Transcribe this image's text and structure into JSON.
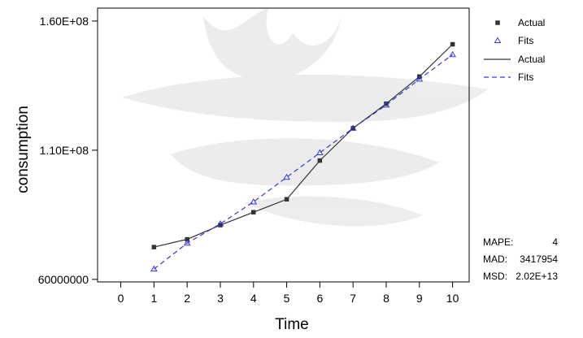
{
  "chart_data": {
    "type": "line",
    "xlabel": "Time",
    "ylabel": "consumption",
    "xlim": [
      -0.7,
      10.5
    ],
    "ylim": [
      59000000,
      165000000
    ],
    "x_ticks": [
      0,
      1,
      2,
      3,
      4,
      5,
      6,
      7,
      8,
      9,
      10
    ],
    "y_ticks": [
      {
        "value": 60000000,
        "label": "60000000"
      },
      {
        "value": 110000000,
        "label": "1.10E+08"
      },
      {
        "value": 160000000,
        "label": "1.60E+08"
      }
    ],
    "x": [
      1,
      2,
      3,
      4,
      5,
      6,
      7,
      8,
      9,
      10
    ],
    "series": [
      {
        "name": "Actual",
        "values": [
          72500000,
          75500000,
          81000000,
          86000000,
          91000000,
          106000000,
          118500000,
          128000000,
          138500000,
          151000000
        ],
        "color": "#333333",
        "marker": "square",
        "line": "solid"
      },
      {
        "name": "Fits",
        "values": [
          64000000,
          74000000,
          81500000,
          90000000,
          99500000,
          109000000,
          118500000,
          127500000,
          137500000,
          147000000
        ],
        "color": "#3a3ad0",
        "marker": "triangle",
        "line": "dashed"
      }
    ],
    "legend": [
      {
        "label": "Actual",
        "kind": "marker",
        "series": 0
      },
      {
        "label": "Fits",
        "kind": "marker",
        "series": 1
      },
      {
        "label": "Actual",
        "kind": "line",
        "series": 0
      },
      {
        "label": "Fits",
        "kind": "line",
        "series": 1
      }
    ],
    "legend_position": "right",
    "accuracy": [
      {
        "label": "MAPE:",
        "value": "4"
      },
      {
        "label": "MAD:",
        "value": "3417954"
      },
      {
        "label": "MSD:",
        "value": "2.02E+13"
      }
    ]
  }
}
